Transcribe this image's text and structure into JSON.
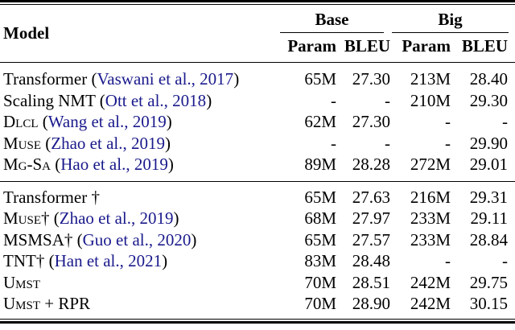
{
  "colors": {
    "citation_blue": "#1a1a8c",
    "text": "#000000",
    "background": "#ffffff"
  },
  "header": {
    "model": "Model",
    "groups": [
      {
        "label": "Base"
      },
      {
        "label": "Big"
      }
    ],
    "subcols": [
      "Param",
      "BLEU",
      "Param",
      "BLEU"
    ]
  },
  "groups": [
    {
      "rows": [
        {
          "model": [
            {
              "t": "Transformer ("
            },
            {
              "t": "Vaswani et al., 2017",
              "cite": true
            },
            {
              "t": ")"
            }
          ],
          "values": [
            "65M",
            "27.30",
            "213M",
            "28.40"
          ]
        },
        {
          "model": [
            {
              "t": "Scaling NMT ("
            },
            {
              "t": "Ott et al., 2018",
              "cite": true
            },
            {
              "t": ")"
            }
          ],
          "values": [
            "-",
            "-",
            "210M",
            "29.30"
          ]
        },
        {
          "model": [
            {
              "t": "Dlcl",
              "sc": true
            },
            {
              "t": " ("
            },
            {
              "t": "Wang et al., 2019",
              "cite": true
            },
            {
              "t": ")"
            }
          ],
          "values": [
            "62M",
            "27.30",
            "-",
            "-"
          ]
        },
        {
          "model": [
            {
              "t": "Muse",
              "sc": true
            },
            {
              "t": " ("
            },
            {
              "t": "Zhao et al., 2019",
              "cite": true
            },
            {
              "t": ")"
            }
          ],
          "values": [
            "-",
            "-",
            "-",
            "29.90"
          ]
        },
        {
          "model": [
            {
              "t": "Mg-Sa",
              "sc": true
            },
            {
              "t": " ("
            },
            {
              "t": "Hao et al., 2019",
              "cite": true
            },
            {
              "t": ")"
            }
          ],
          "values": [
            "89M",
            "28.28",
            "272M",
            "29.01"
          ]
        }
      ]
    },
    {
      "rows": [
        {
          "model": [
            {
              "t": "Transformer †"
            }
          ],
          "values": [
            "65M",
            "27.63",
            "216M",
            "29.31"
          ]
        },
        {
          "model": [
            {
              "t": "Muse",
              "sc": true
            },
            {
              "t": "† ("
            },
            {
              "t": "Zhao et al., 2019",
              "cite": true
            },
            {
              "t": ")"
            }
          ],
          "values": [
            "68M",
            "27.97",
            "233M",
            "29.11"
          ]
        },
        {
          "model": [
            {
              "t": "MSMSA† ("
            },
            {
              "t": "Guo et al., 2020",
              "cite": true
            },
            {
              "t": ")"
            }
          ],
          "values": [
            "65M",
            "27.57",
            "233M",
            "28.84"
          ]
        },
        {
          "model": [
            {
              "t": "TNT† ("
            },
            {
              "t": "Han et al., 2021",
              "cite": true
            },
            {
              "t": ")"
            }
          ],
          "values": [
            "83M",
            "28.48",
            "-",
            "-"
          ]
        },
        {
          "model": [
            {
              "t": "Umst",
              "sc": true
            }
          ],
          "values": [
            "70M",
            "28.51",
            "242M",
            "29.75"
          ]
        },
        {
          "model": [
            {
              "t": "Umst",
              "sc": true
            },
            {
              "t": " + RPR"
            }
          ],
          "values": [
            "70M",
            "28.90",
            "242M",
            "30.15"
          ]
        }
      ]
    }
  ]
}
